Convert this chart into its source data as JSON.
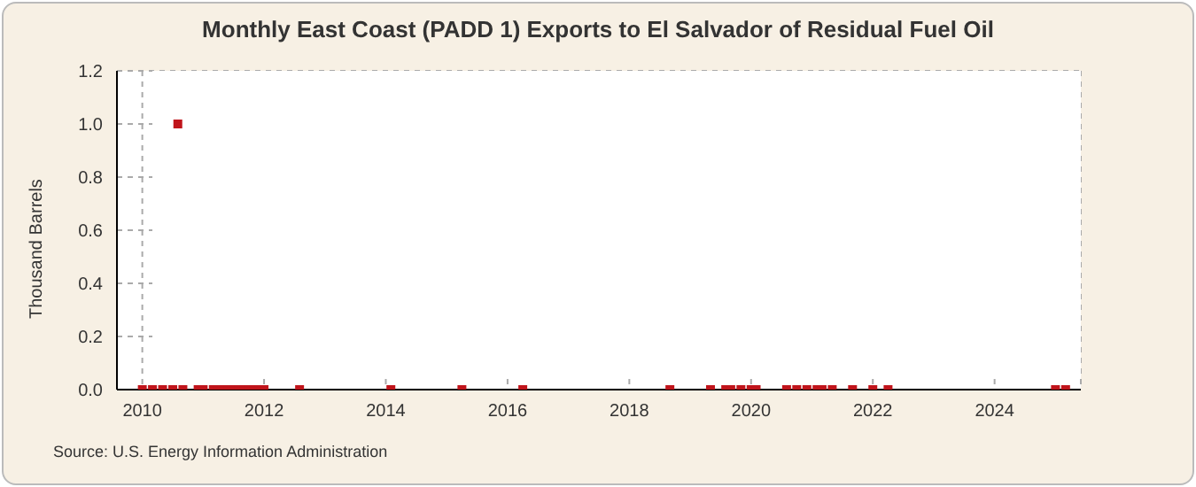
{
  "chart_data": {
    "type": "scatter",
    "title": "Monthly East Coast (PADD 1) Exports to El Salvador of Residual Fuel Oil",
    "ylabel": "Thousand Barrels",
    "annotations": [
      "Source: U.S. Energy Information Administration"
    ],
    "x": [
      "2010-01",
      "2010-03",
      "2010-05",
      "2010-07",
      "2010-08",
      "2010-09",
      "2010-12",
      "2011-01",
      "2011-03",
      "2011-04",
      "2011-05",
      "2011-06",
      "2011-07",
      "2011-08",
      "2011-09",
      "2011-10",
      "2011-11",
      "2011-12",
      "2012-01",
      "2012-08",
      "2014-02",
      "2015-04",
      "2016-04",
      "2018-09",
      "2019-05",
      "2019-08",
      "2019-09",
      "2019-11",
      "2020-01",
      "2020-02",
      "2020-08",
      "2020-10",
      "2020-12",
      "2021-02",
      "2021-03",
      "2021-05",
      "2021-09",
      "2022-01",
      "2022-04",
      "2025-01",
      "2025-03"
    ],
    "series": [
      {
        "color": "#c0141b",
        "values": [
          0,
          0,
          0,
          0,
          1,
          0,
          0,
          0,
          0,
          0,
          0,
          0,
          0,
          0,
          0,
          0,
          0,
          0,
          0,
          0,
          0,
          0,
          0,
          0,
          0,
          0,
          0,
          0,
          0,
          0,
          0,
          0,
          0,
          0,
          0,
          0,
          0,
          0,
          0,
          0,
          0
        ]
      }
    ],
    "xlim": [
      "2009-08",
      "2025-06"
    ],
    "xticks": [
      "2010",
      "2012",
      "2014",
      "2016",
      "2018",
      "2020",
      "2022",
      "2024"
    ],
    "ylim": [
      0,
      1.2
    ],
    "yticks": [
      {
        "value": 0,
        "label": "0.0"
      },
      {
        "value": 0.2,
        "label": "0.2"
      },
      {
        "value": 0.4,
        "label": "0.4"
      },
      {
        "value": 0.6,
        "label": "0.6"
      },
      {
        "value": 0.8,
        "label": "0.8"
      },
      {
        "value": 1,
        "label": "1.0"
      },
      {
        "value": 1.2,
        "label": "1.2"
      }
    ],
    "grid": true,
    "marker": "square"
  }
}
